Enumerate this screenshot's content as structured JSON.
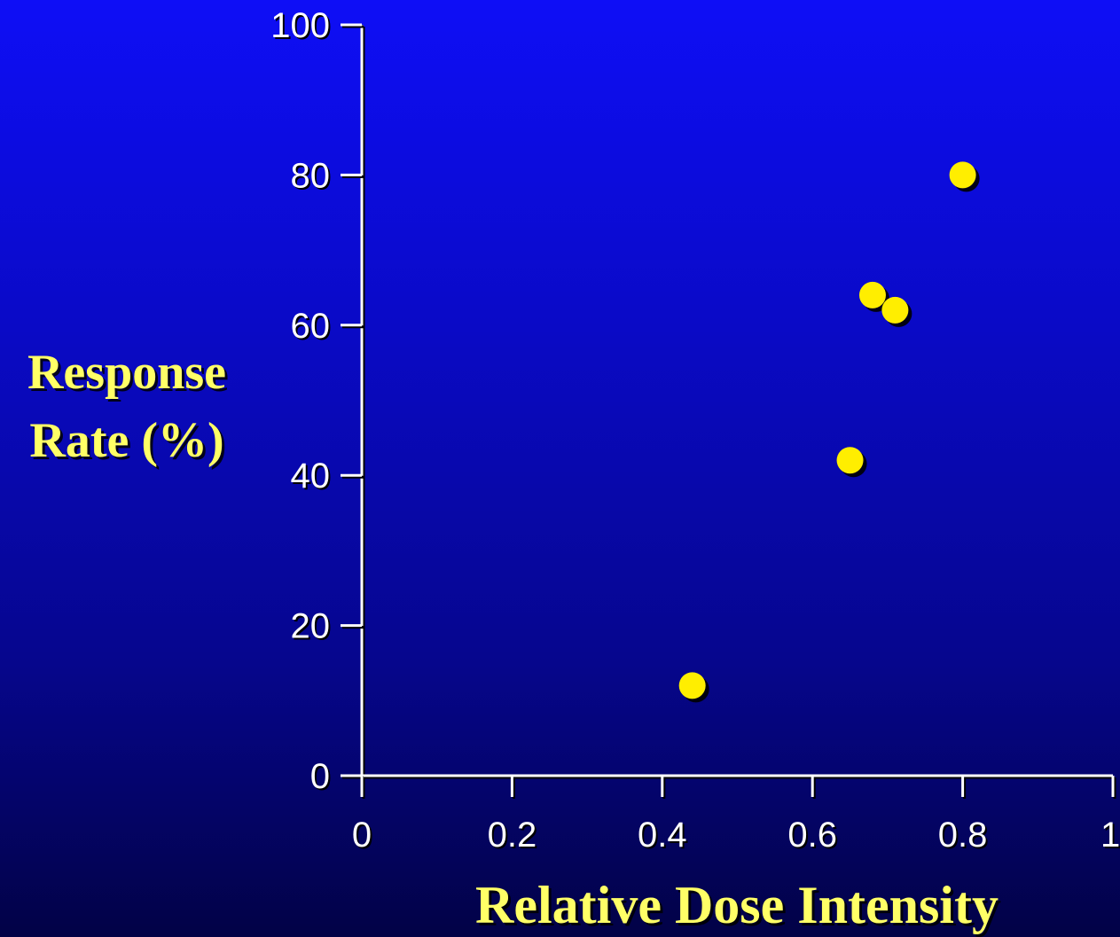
{
  "colors": {
    "background_top": "#0e0ef6",
    "background_bottom": "#020246",
    "axis": "#ffffff",
    "tick_text": "#ffffff",
    "title_text": "#ffff66",
    "marker_fill": "#ffee00",
    "marker_shadow": "#000000"
  },
  "chart_data": {
    "type": "scatter",
    "title": "",
    "xlabel": "Relative Dose Intensity",
    "ylabel_lines": [
      "Response",
      "Rate (%)"
    ],
    "xlim": [
      0,
      1
    ],
    "ylim": [
      0,
      100
    ],
    "x_ticks": [
      {
        "value": 0,
        "label": "0"
      },
      {
        "value": 0.2,
        "label": "0.2"
      },
      {
        "value": 0.4,
        "label": "0.4"
      },
      {
        "value": 0.6,
        "label": "0.6"
      },
      {
        "value": 0.8,
        "label": "0.8"
      },
      {
        "value": 1,
        "label": "1"
      }
    ],
    "y_ticks": [
      {
        "value": 0,
        "label": "0"
      },
      {
        "value": 20,
        "label": "20"
      },
      {
        "value": 40,
        "label": "40"
      },
      {
        "value": 60,
        "label": "60"
      },
      {
        "value": 80,
        "label": "80"
      },
      {
        "value": 100,
        "label": "100"
      }
    ],
    "grid": false,
    "legend": "none",
    "points": [
      {
        "x": 0.44,
        "y": 12
      },
      {
        "x": 0.65,
        "y": 42
      },
      {
        "x": 0.68,
        "y": 64
      },
      {
        "x": 0.71,
        "y": 62
      },
      {
        "x": 0.8,
        "y": 80
      }
    ]
  }
}
